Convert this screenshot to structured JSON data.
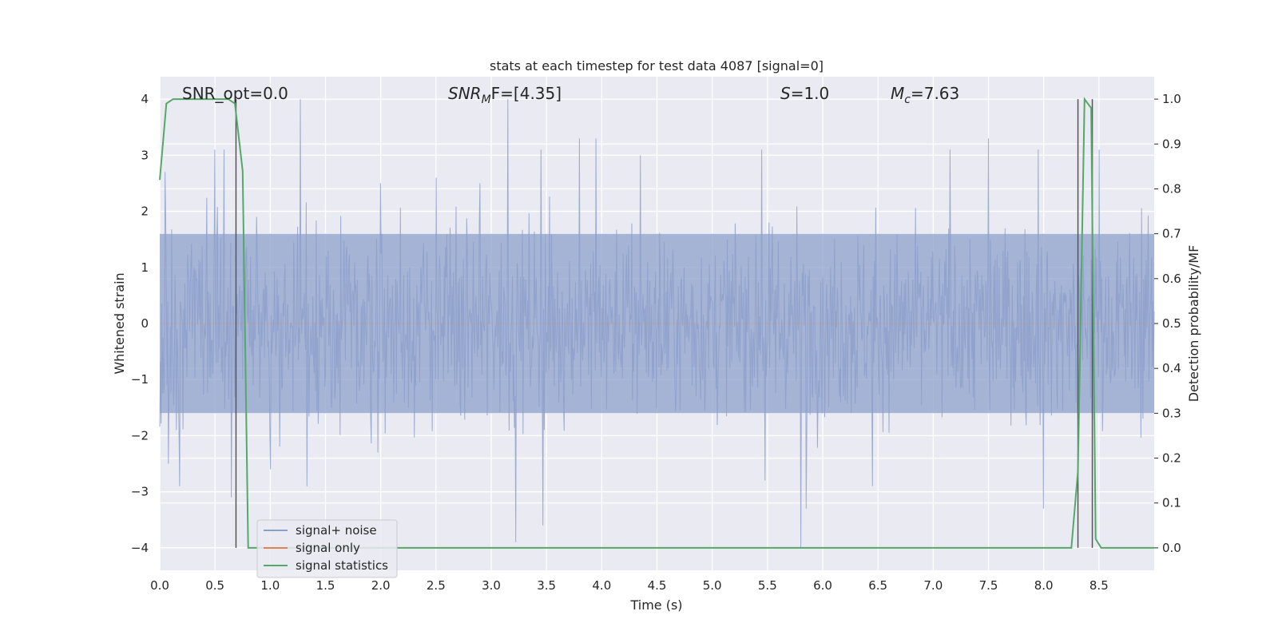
{
  "chart_data": {
    "type": "line",
    "title": "stats at each timestep for test data 4087 [signal=0]",
    "xlabel": "Time (s)",
    "ylabel_left": "Whitened strain",
    "ylabel_right": "Detection probability/MF",
    "xlim": [
      0.0,
      9.0
    ],
    "ylim_left": [
      -4.4,
      4.4
    ],
    "ylim_right": [
      -0.05,
      1.05
    ],
    "grid": true,
    "x_ticks": [
      "0.0",
      "0.5",
      "1.0",
      "1.5",
      "2.0",
      "2.5",
      "3.0",
      "3.5",
      "4.0",
      "4.5",
      "5.0",
      "5.5",
      "6.0",
      "6.5",
      "7.0",
      "7.5",
      "8.0",
      "8.5"
    ],
    "x_tick_values": [
      0.0,
      0.5,
      1.0,
      1.5,
      2.0,
      2.5,
      3.0,
      3.5,
      4.0,
      4.5,
      5.0,
      5.5,
      6.0,
      6.5,
      7.0,
      7.5,
      8.0,
      8.5
    ],
    "y_left_ticks": [
      "4",
      "3",
      "2",
      "1",
      "0",
      "−1",
      "−2",
      "−3",
      "−4"
    ],
    "y_left_tick_values": [
      4,
      3,
      2,
      1,
      0,
      -1,
      -2,
      -3,
      -4
    ],
    "y_right_ticks": [
      "1.0",
      "0.9",
      "0.8",
      "0.7",
      "0.6",
      "0.5",
      "0.4",
      "0.3",
      "0.2",
      "0.1",
      "0.0"
    ],
    "y_right_tick_values": [
      1.0,
      0.9,
      0.8,
      0.7,
      0.6,
      0.5,
      0.4,
      0.3,
      0.2,
      0.1,
      0.0
    ],
    "annotations": {
      "snr_opt": "SNR_opt=0.0",
      "snr_mf_main": "SNR",
      "snr_mf_sub": "M",
      "snr_mf_rest": "F=[4.35]",
      "s_label": "S",
      "s_value": "=1.0",
      "mc_label": "M",
      "mc_sub": "c",
      "mc_value": "=7.63"
    },
    "legend": {
      "placement": "lower-left",
      "entries": [
        {
          "label": "signal+ noise",
          "color": "#8da0cb"
        },
        {
          "label": "signal only",
          "color": "#dd8452"
        },
        {
          "label": "signal statistics",
          "color": "#55a868"
        }
      ]
    },
    "series": [
      {
        "name": "signal+ noise",
        "axis": "left",
        "color": "#8da0cb",
        "note": "whitened strain noise, approx. within [-1.6, 1.6] with spikes",
        "spikes": [
          {
            "x": 0.05,
            "y": 2.7
          },
          {
            "x": 0.08,
            "y": -2.5
          },
          {
            "x": 0.18,
            "y": -2.9
          },
          {
            "x": 0.5,
            "y": 3.1
          },
          {
            "x": 0.58,
            "y": 3.1
          },
          {
            "x": 0.65,
            "y": -3.1
          },
          {
            "x": 1.0,
            "y": -2.6
          },
          {
            "x": 1.27,
            "y": 4.0
          },
          {
            "x": 1.33,
            "y": -2.9
          },
          {
            "x": 2.0,
            "y": 2.5
          },
          {
            "x": 2.5,
            "y": 2.6
          },
          {
            "x": 2.9,
            "y": 2.5
          },
          {
            "x": 3.15,
            "y": 4.0
          },
          {
            "x": 3.22,
            "y": -3.9
          },
          {
            "x": 3.45,
            "y": 3.1
          },
          {
            "x": 3.47,
            "y": -3.6
          },
          {
            "x": 3.8,
            "y": 3.3
          },
          {
            "x": 3.95,
            "y": 3.3
          },
          {
            "x": 4.35,
            "y": 3.0
          },
          {
            "x": 5.45,
            "y": 3.1
          },
          {
            "x": 5.48,
            "y": -2.8
          },
          {
            "x": 5.8,
            "y": -4.0
          },
          {
            "x": 5.85,
            "y": -3.3
          },
          {
            "x": 6.45,
            "y": -2.9
          },
          {
            "x": 7.15,
            "y": 3.1
          },
          {
            "x": 7.5,
            "y": 3.3
          },
          {
            "x": 7.95,
            "y": 3.1
          },
          {
            "x": 8.0,
            "y": -3.3
          },
          {
            "x": 8.5,
            "y": 3.1
          }
        ]
      },
      {
        "name": "signal only",
        "axis": "left",
        "color": "#dd8452",
        "x": [
          0.0,
          9.0
        ],
        "y": [
          0.0,
          0.0
        ]
      },
      {
        "name": "signal statistics",
        "axis": "right",
        "color": "#55a868",
        "x": [
          0.0,
          0.06,
          0.12,
          0.62,
          0.68,
          0.75,
          0.8,
          8.25,
          8.31,
          8.37,
          8.43,
          8.47,
          8.52,
          9.0
        ],
        "y": [
          0.82,
          0.99,
          1.0,
          1.0,
          0.99,
          0.84,
          0.0,
          0.0,
          0.17,
          1.0,
          0.98,
          0.02,
          0.0,
          0.0
        ]
      }
    ],
    "vertical_markers": [
      {
        "x": 0.69,
        "y_from": -4,
        "y_to": 4
      },
      {
        "x": 8.31,
        "y_from": -4,
        "y_to": 4
      },
      {
        "x": 8.44,
        "y_from": -4,
        "y_to": 4
      }
    ]
  }
}
